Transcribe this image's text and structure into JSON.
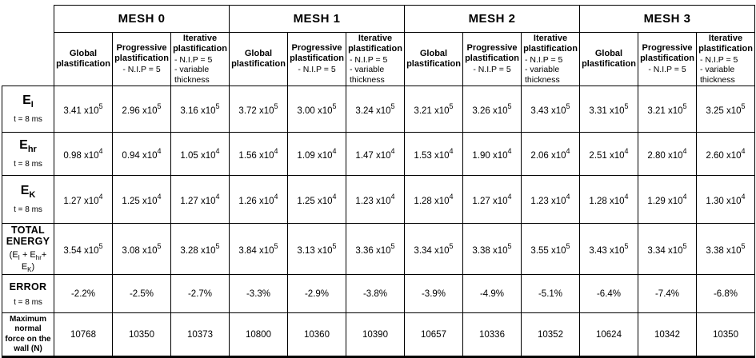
{
  "page": {
    "background_color": "#ffffff",
    "border_color": "#000000",
    "text_color": "#000000"
  },
  "table": {
    "mesh_headers": [
      "MESH 0",
      "MESH 1",
      "MESH 2",
      "MESH 3"
    ],
    "method_headers": [
      {
        "title": "Global plastification",
        "details": []
      },
      {
        "title": "Progressive plastification",
        "details": [
          "- N.I.P = 5"
        ]
      },
      {
        "title": "Iterative plastification",
        "details": [
          "- N.I.P = 5",
          "- variable",
          "thickness"
        ]
      }
    ],
    "rows": [
      {
        "kind": "symbol",
        "symbol": "E",
        "subscript": "I",
        "note": "t = 8 ms",
        "cells": [
          "3.41 x10^5",
          "2.96 x10^5",
          "3.16 x10^5",
          "3.72 x10^5",
          "3.00 x10^5",
          "3.24 x10^5",
          "3.21 x10^5",
          "3.26 x10^5",
          "3.43 x10^5",
          "3.31 x10^5",
          "3.21 x10^5",
          "3.25 x10^5"
        ]
      },
      {
        "kind": "symbol",
        "symbol": "E",
        "subscript": "hr",
        "note": "t = 8 ms",
        "cells": [
          "0.98 x10^4",
          "0.94 x10^4",
          "1.05 x10^4",
          "1.56 x10^4",
          "1.09 x10^4",
          "1.47 x10^4",
          "1.53 x10^4",
          "1.90 x10^4",
          "2.06 x10^4",
          "2.51 x10^4",
          "2.80 x10^4",
          "2.60 x10^4"
        ]
      },
      {
        "kind": "symbol",
        "symbol": "E",
        "subscript": "K",
        "note": "t = 8 ms",
        "cells": [
          "1.27 x10^4",
          "1.25 x10^4",
          "1.27 x10^4",
          "1.26 x10^4",
          "1.25 x10^4",
          "1.23 x10^4",
          "1.28 x10^4",
          "1.27 x10^4",
          "1.23 x10^4",
          "1.28 x10^4",
          "1.29 x10^4",
          "1.30 x10^4"
        ]
      },
      {
        "kind": "total",
        "title_lines": [
          "TOTAL",
          "ENERGY"
        ],
        "formula_segments": [
          {
            "text": "(E",
            "sub": "I"
          },
          {
            "text": " + E",
            "sub": "hr"
          },
          {
            "text": "+ E",
            "sub": "K"
          },
          {
            "text": ")",
            "sub": ""
          }
        ],
        "cells": [
          "3.54 x10^5",
          "3.08 x10^5",
          "3.28 x10^5",
          "3.84 x10^5",
          "3.13 x10^5",
          "3.36 x10^5",
          "3.34 x10^5",
          "3.38 x10^5",
          "3.55 x10^5",
          "3.43 x10^5",
          "3.34 x10^5",
          "3.38 x10^5"
        ]
      },
      {
        "kind": "error",
        "title": "ERROR",
        "note": "t = 8 ms",
        "cells": [
          "-2.2%",
          "-2.5%",
          "-2.7%",
          "-3.3%",
          "-2.9%",
          "-3.8%",
          "-3.9%",
          "-4.9%",
          "-5.1%",
          "-6.4%",
          "-7.4%",
          "-6.8%"
        ]
      },
      {
        "kind": "force",
        "title": "Maximum normal force on the wall (N)",
        "cells": [
          "10768",
          "10350",
          "10373",
          "10800",
          "10360",
          "10390",
          "10657",
          "10336",
          "10352",
          "10624",
          "10342",
          "10350"
        ]
      }
    ]
  }
}
